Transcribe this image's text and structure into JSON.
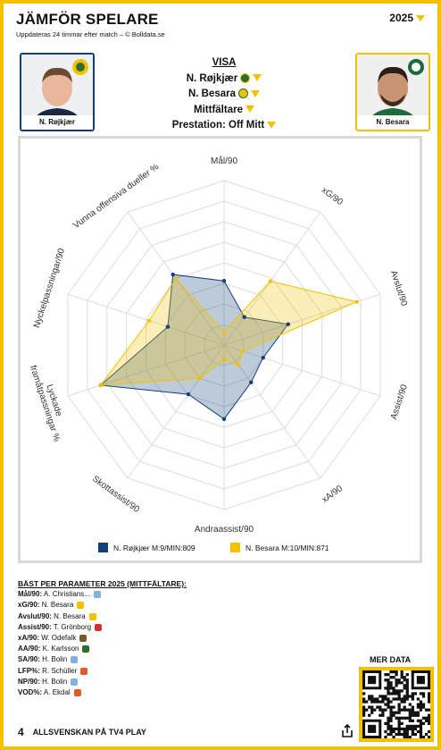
{
  "header": {
    "title": "JÄMFÖR SPELARE",
    "subtitle": "Uppdateras 24 timmar efter match – © Bolldata.se",
    "year": "2025"
  },
  "players": [
    {
      "name": "N. Røjkjær"
    },
    {
      "name": "N. Besara"
    }
  ],
  "filters": {
    "heading": "VISA",
    "items": [
      "N. Røjkjær",
      "N. Besara",
      "Mittfältare",
      "Prestation: Off Mitt"
    ]
  },
  "chart_data": {
    "type": "radar",
    "categories": [
      "Mål/90",
      "xG/90",
      "Avslut/90",
      "Assist/90",
      "xA/90",
      "Andraassist/90",
      "Skottassist/90",
      "Lyckade framåtpassningar %",
      "Nyckelpassningar/90",
      "Vunna offensiva dueller %"
    ],
    "rlim": [
      0,
      100
    ],
    "series": [
      {
        "name": "N. Røjkjær M:9/MIN:809",
        "color": "#123f7a",
        "values": [
          39,
          21,
          41,
          25,
          28,
          45,
          37,
          79,
          36,
          53
        ]
      },
      {
        "name": "N. Besara M:10/MIN:871",
        "color": "#f2c200",
        "values": [
          8,
          48,
          85,
          12,
          15,
          9,
          25,
          79,
          48,
          50
        ]
      }
    ]
  },
  "best": {
    "title": "BÄST PER PARAMETER 2025 (MITTFÄLTARE):",
    "rows": [
      {
        "label": "Mål/90:",
        "player": "A. Christians..."
      },
      {
        "label": "xG/90:",
        "player": "N. Besara"
      },
      {
        "label": "Avslut/90:",
        "player": "N. Besara"
      },
      {
        "label": "Assist/90:",
        "player": "T. Grönborg"
      },
      {
        "label": "xA/90:",
        "player": "W. Odefalk"
      },
      {
        "label": "AA/90:",
        "player": "K. Karlsson"
      },
      {
        "label": "SA/90:",
        "player": "H. Bolin"
      },
      {
        "label": "LFP%:",
        "player": "R. Schüller"
      },
      {
        "label": "NP/90:",
        "player": "H. Bolin"
      },
      {
        "label": "VOD%:",
        "player": "A. Ekdal"
      }
    ]
  },
  "footer": {
    "logo": "4",
    "brand": "ALLSVENSKAN PÅ TV4 PLAY",
    "more": "MER DATA"
  }
}
